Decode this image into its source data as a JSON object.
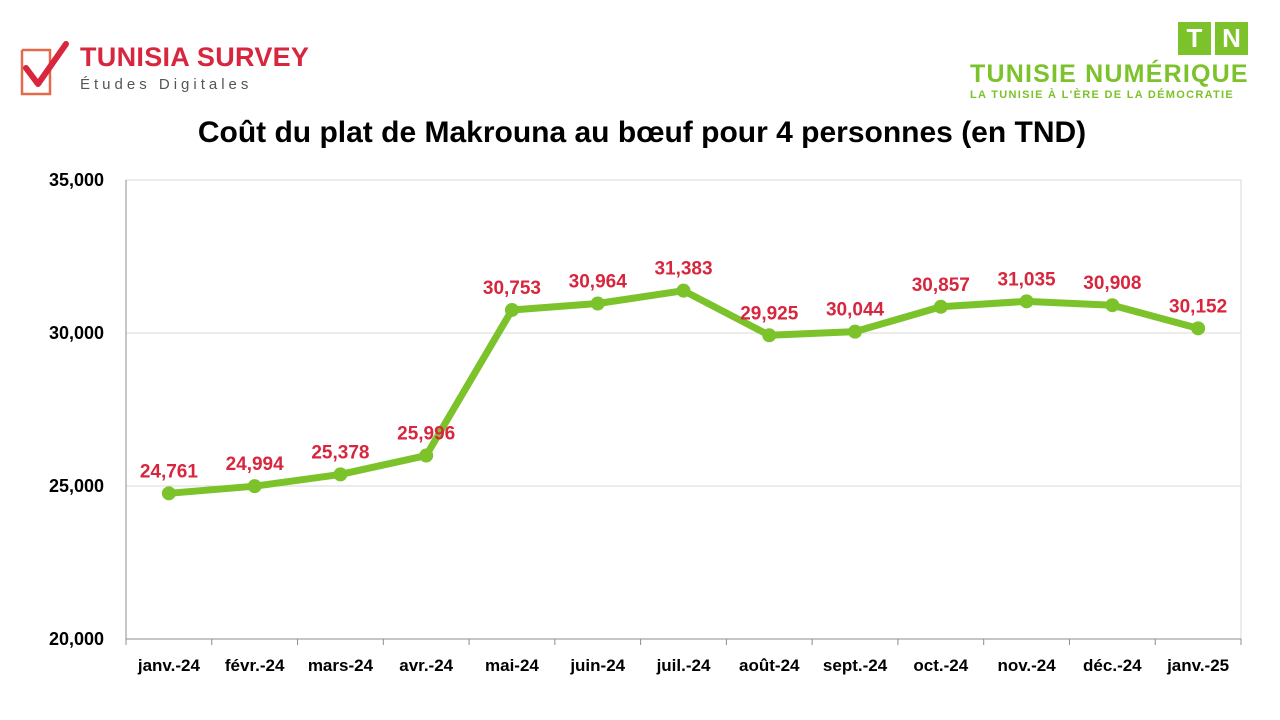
{
  "logos": {
    "left": {
      "name": "TUNISIA SURVEY",
      "tagline": "Études Digitales"
    },
    "right": {
      "badge_t": "T",
      "badge_n": "N",
      "name": "TUNISIE NUMÉRIQUE",
      "tagline": "LA TUNISIE À L'ÈRE DE LA DÉMOCRATIE"
    }
  },
  "colors": {
    "line": "#7cc22a",
    "data_label": "#d7263d",
    "brand_red": "#d7263d",
    "brand_green": "#7cc22a"
  },
  "chart_data": {
    "type": "line",
    "title": "Coût du plat de Makrouna au bœuf pour 4 personnes (en TND)",
    "xlabel": "",
    "ylabel": "",
    "categories": [
      "janv.-24",
      "févr.-24",
      "mars-24",
      "avr.-24",
      "mai-24",
      "juin-24",
      "juil.-24",
      "août-24",
      "sept.-24",
      "oct.-24",
      "nov.-24",
      "déc.-24",
      "janv.-25"
    ],
    "series": [
      {
        "values": [
          24.761,
          24.994,
          25.378,
          25.996,
          30.753,
          30.964,
          31.383,
          29.925,
          30.044,
          30.857,
          31.035,
          30.908,
          30.152
        ]
      }
    ],
    "data_labels": [
      "24,761",
      "24,994",
      "25,378",
      "25,996",
      "30,753",
      "30,964",
      "31,383",
      "29,925",
      "30,044",
      "30,857",
      "31,035",
      "30,908",
      "30,152"
    ],
    "ylim": [
      20,
      35
    ],
    "yticks": [
      20,
      25,
      30,
      35
    ],
    "ytick_labels": [
      "20,000",
      "25,000",
      "30,000",
      "35,000"
    ],
    "grid": true,
    "legend": "none"
  }
}
